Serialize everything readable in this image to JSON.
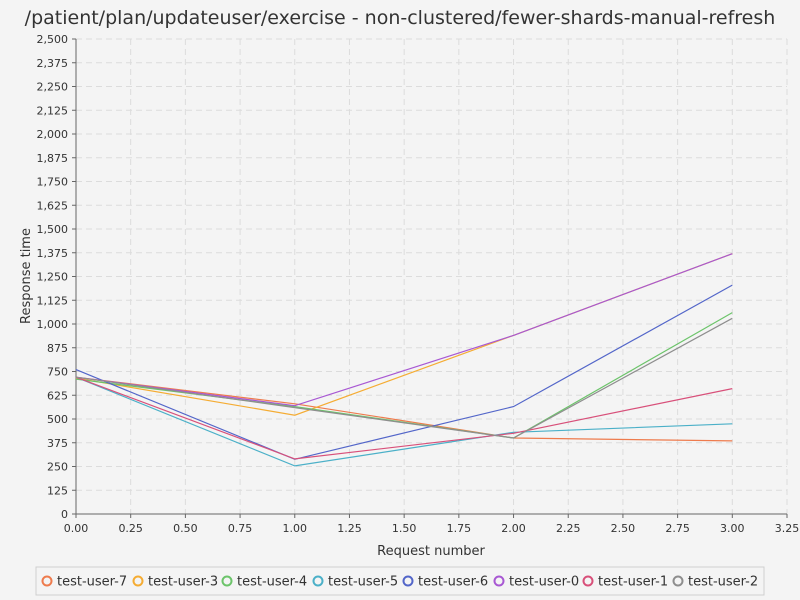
{
  "chart_data": {
    "type": "line",
    "title": "/patient/plan/updateuser/exercise - non-clustered/fewer-shards-manual-refresh",
    "xlabel": "Request number",
    "ylabel": "Response time",
    "xlim": [
      0,
      3.25
    ],
    "ylim": [
      0,
      2500
    ],
    "x_ticks": [
      "0.00",
      "0.25",
      "0.50",
      "0.75",
      "1.00",
      "1.25",
      "1.50",
      "1.75",
      "2.00",
      "2.25",
      "2.50",
      "2.75",
      "3.00",
      "3.25"
    ],
    "y_ticks": [
      "0",
      "125",
      "250",
      "375",
      "500",
      "625",
      "750",
      "875",
      "1,000",
      "1,125",
      "1,250",
      "1,375",
      "1,500",
      "1,625",
      "1,750",
      "1,875",
      "2,000",
      "2,125",
      "2,250",
      "2,375",
      "2,500"
    ],
    "grid": true,
    "legend_position": "bottom",
    "x": [
      0,
      1,
      2,
      3
    ],
    "series": [
      {
        "name": "test-user-7",
        "color": "#ee7b4d",
        "values": [
          720,
          580,
          400,
          385
        ]
      },
      {
        "name": "test-user-3",
        "color": "#f5ac33",
        "values": [
          715,
          520,
          940,
          1370
        ]
      },
      {
        "name": "test-user-4",
        "color": "#6cc46a",
        "values": [
          710,
          565,
          400,
          1060
        ]
      },
      {
        "name": "test-user-5",
        "color": "#4bb0c8",
        "values": [
          720,
          253,
          430,
          475
        ]
      },
      {
        "name": "test-user-6",
        "color": "#5366c9",
        "values": [
          760,
          288,
          565,
          1205
        ]
      },
      {
        "name": "test-user-0",
        "color": "#a858d3",
        "values": [
          720,
          570,
          940,
          1370
        ]
      },
      {
        "name": "test-user-1",
        "color": "#d8507a",
        "values": [
          720,
          290,
          425,
          660
        ]
      },
      {
        "name": "test-user-2",
        "color": "#8e8e8e",
        "values": [
          720,
          560,
          400,
          1030
        ]
      }
    ]
  }
}
